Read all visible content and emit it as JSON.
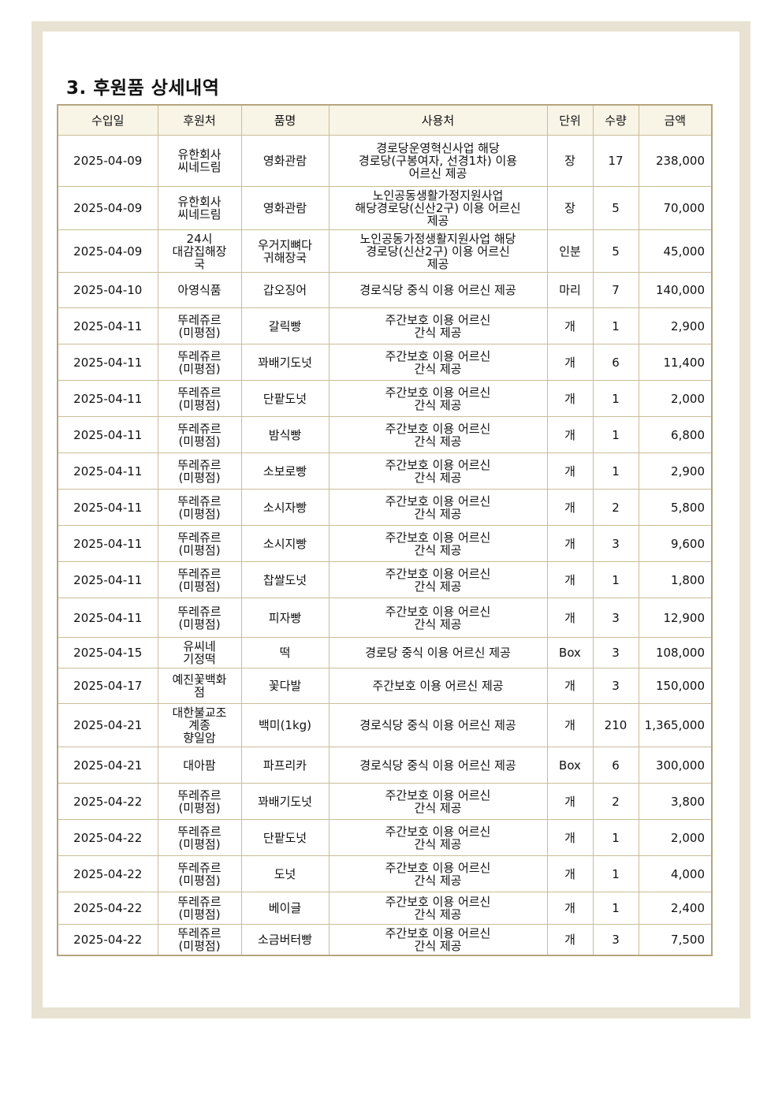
{
  "title": "3. 후원품 상세내역",
  "columns": [
    "수입일",
    "후원처",
    "품명",
    "사용처",
    "단위",
    "수량",
    "금액"
  ],
  "rows": [
    [
      "2025-04-09",
      "유한회사\n씨네드림",
      "영화관람",
      "경로당운영혁신사업 해당\n경로당(구봉여자, 선경1차) 이용\n어르신 제공",
      "장",
      "17",
      "238,000"
    ],
    [
      "2025-04-09",
      "유한회사\n씨네드림",
      "영화관람",
      "노인공동생활가정지원사업\n해당경로당(신산2구) 이용 어르신\n제공",
      "장",
      "5",
      "70,000"
    ],
    [
      "2025-04-09",
      "24시\n대감집해장\n국",
      "우거지뼈다\n귀해장국",
      "노인공동가정생활지원사업 해당\n경로당(신산2구) 이용 어르신\n제공",
      "인분",
      "5",
      "45,000"
    ],
    [
      "2025-04-10",
      "아영식품",
      "갑오징어",
      "경로식당 중식 이용 어르신 제공",
      "마리",
      "7",
      "140,000"
    ],
    [
      "2025-04-11",
      "뚜레쥬르\n(미평점)",
      "갈릭빵",
      "주간보호 이용 어르신\n간식 제공",
      "개",
      "1",
      "2,900"
    ],
    [
      "2025-04-11",
      "뚜레쥬르\n(미평점)",
      "꽈배기도넛",
      "주간보호 이용 어르신\n간식 제공",
      "개",
      "6",
      "11,400"
    ],
    [
      "2025-04-11",
      "뚜레쥬르\n(미평점)",
      "단팥도넛",
      "주간보호 이용 어르신\n간식 제공",
      "개",
      "1",
      "2,000"
    ],
    [
      "2025-04-11",
      "뚜레쥬르\n(미평점)",
      "밤식빵",
      "주간보호 이용 어르신\n간식 제공",
      "개",
      "1",
      "6,800"
    ],
    [
      "2025-04-11",
      "뚜레쥬르\n(미평점)",
      "소보로빵",
      "주간보호 이용 어르신\n간식 제공",
      "개",
      "1",
      "2,900"
    ],
    [
      "2025-04-11",
      "뚜레쥬르\n(미평점)",
      "소시자빵",
      "주간보호 이용 어르신\n간식 제공",
      "개",
      "2",
      "5,800"
    ],
    [
      "2025-04-11",
      "뚜레쥬르\n(미평점)",
      "소시지빵",
      "주간보호 이용 어르신\n간식 제공",
      "개",
      "3",
      "9,600"
    ],
    [
      "2025-04-11",
      "뚜레쥬르\n(미평점)",
      "찹쌀도넛",
      "주간보호 이용 어르신\n간식 제공",
      "개",
      "1",
      "1,800"
    ],
    [
      "2025-04-11",
      "뚜레쥬르\n(미평점)",
      "피자빵",
      "주간보호 이용 어르신\n간식 제공",
      "개",
      "3",
      "12,900"
    ],
    [
      "2025-04-15",
      "유씨네\n기정떡",
      "떡",
      "경로당 중식 이용 어르신 제공",
      "Box",
      "3",
      "108,000"
    ],
    [
      "2025-04-17",
      "예진꽃백화\n점",
      "꽃다발",
      "주간보호 이용 어르신 제공",
      "개",
      "3",
      "150,000"
    ],
    [
      "2025-04-21",
      "대한불교조\n계종\n향일암",
      "백미(1kg)",
      "경로식당 중식 이용 어르신 제공",
      "개",
      "210",
      "1,365,000"
    ],
    [
      "2025-04-21",
      "대아팜",
      "파프리카",
      "경로식당 중식 이용 어르신 제공",
      "Box",
      "6",
      "300,000"
    ],
    [
      "2025-04-22",
      "뚜레쥬르\n(미평점)",
      "꽈배기도넛",
      "주간보호 이용 어르신\n간식 제공",
      "개",
      "2",
      "3,800"
    ],
    [
      "2025-04-22",
      "뚜레쥬르\n(미평점)",
      "단팥도넛",
      "주간보호 이용 어르신\n간식 제공",
      "개",
      "1",
      "2,000"
    ],
    [
      "2025-04-22",
      "뚜레쥬르\n(미평점)",
      "도넛",
      "주간보호 이용 어르신\n간식 제공",
      "개",
      "1",
      "4,000"
    ],
    [
      "2025-04-22",
      "뚜레쥬르\n(미평점)",
      "베이글",
      "주간보호 이용 어르신\n간식 제공",
      "개",
      "1",
      "2,400"
    ],
    [
      "2025-04-22",
      "뚜레쥬르\n(미평점)",
      "소금버터빵",
      "주간보호 이용 어르신\n간식 제공",
      "개",
      "3",
      "7,500"
    ]
  ]
}
